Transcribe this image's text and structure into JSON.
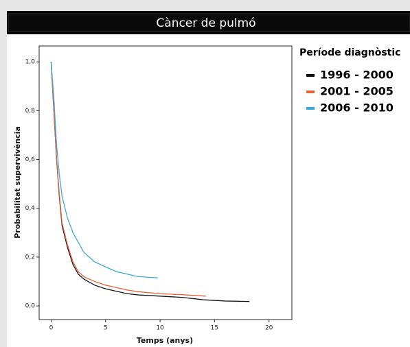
{
  "chart_data": {
    "type": "line",
    "title": "Càncer de pulmó",
    "x_label": "Temps (anys)",
    "y_label": "Probabilitat supervivència",
    "legend_title": "Període diagnòstic",
    "legend": "right",
    "xlim": [
      -1.1,
      22.1
    ],
    "xticks": [
      0,
      5,
      10,
      15,
      20
    ],
    "ylim": [
      -0.056,
      1.065
    ],
    "yticks": [
      {
        "value": 0,
        "label": "0,0"
      },
      {
        "value": 0.2,
        "label": "0,2"
      },
      {
        "value": 0.4,
        "label": "0,4"
      },
      {
        "value": 0.6,
        "label": "0,6"
      },
      {
        "value": 0.8,
        "label": "0,8"
      },
      {
        "value": 1,
        "label": "1,0"
      }
    ],
    "series": [
      {
        "name": "1996 - 2000",
        "color": "#111111",
        "x": [
          0,
          0.25,
          0.5,
          0.75,
          1,
          1.5,
          2,
          2.5,
          3,
          4,
          5,
          6,
          7,
          8,
          10,
          12,
          14,
          16,
          18.2
        ],
        "values": [
          1,
          0.8,
          0.6,
          0.45,
          0.33,
          0.24,
          0.17,
          0.13,
          0.11,
          0.085,
          0.07,
          0.06,
          0.05,
          0.045,
          0.04,
          0.035,
          0.025,
          0.02,
          0.018
        ]
      },
      {
        "name": "2001 - 2005",
        "color": "#e8623a",
        "x": [
          0,
          0.25,
          0.5,
          0.75,
          1,
          1.5,
          2,
          2.5,
          3,
          4,
          5,
          6,
          7,
          8,
          10,
          12,
          14.2
        ],
        "values": [
          1,
          0.8,
          0.6,
          0.46,
          0.34,
          0.25,
          0.18,
          0.14,
          0.12,
          0.1,
          0.085,
          0.075,
          0.065,
          0.058,
          0.05,
          0.046,
          0.04
        ]
      },
      {
        "name": "2006 - 2010",
        "color": "#3aa9da",
        "x": [
          0,
          0.25,
          0.5,
          0.75,
          1,
          1.5,
          2,
          2.5,
          3,
          4,
          5,
          6,
          7,
          8,
          9.8
        ],
        "values": [
          1,
          0.85,
          0.66,
          0.54,
          0.45,
          0.36,
          0.3,
          0.26,
          0.22,
          0.18,
          0.16,
          0.14,
          0.13,
          0.12,
          0.115
        ]
      }
    ]
  }
}
